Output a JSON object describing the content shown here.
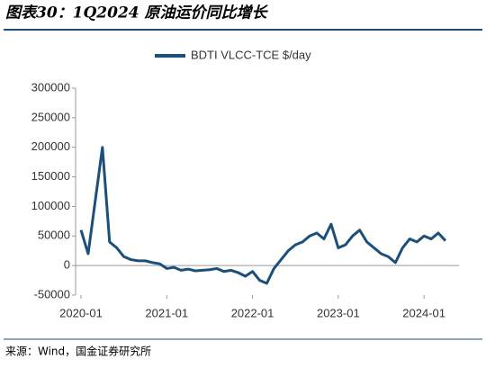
{
  "chart_data": {
    "type": "line",
    "title": "图表30：1Q2024 原油运价同比增长",
    "source": "来源：Wind，国金证券研究所",
    "x": [
      "2020-01",
      "2020-02",
      "2020-03",
      "2020-04",
      "2020-05",
      "2020-06",
      "2020-07",
      "2020-08",
      "2020-09",
      "2020-10",
      "2020-11",
      "2020-12",
      "2021-01",
      "2021-02",
      "2021-03",
      "2021-04",
      "2021-05",
      "2021-06",
      "2021-07",
      "2021-08",
      "2021-09",
      "2021-10",
      "2021-11",
      "2021-12",
      "2022-01",
      "2022-02",
      "2022-03",
      "2022-04",
      "2022-05",
      "2022-06",
      "2022-07",
      "2022-08",
      "2022-09",
      "2022-10",
      "2022-11",
      "2022-12",
      "2023-01",
      "2023-02",
      "2023-03",
      "2023-04",
      "2023-05",
      "2023-06",
      "2023-07",
      "2023-08",
      "2023-09",
      "2023-10",
      "2023-11",
      "2023-12",
      "2024-01",
      "2024-02",
      "2024-03",
      "2024-04"
    ],
    "series": [
      {
        "name": "BDTI VLCC-TCE $/day",
        "color": "#1c4f7a",
        "values": [
          60000,
          20000,
          110000,
          200000,
          40000,
          30000,
          15000,
          10000,
          8000,
          8000,
          5000,
          3000,
          -5000,
          -3000,
          -8000,
          -6000,
          -9000,
          -8000,
          -7000,
          -5000,
          -10000,
          -8000,
          -12000,
          -18000,
          -10000,
          -25000,
          -30000,
          -5000,
          10000,
          25000,
          35000,
          40000,
          50000,
          55000,
          45000,
          70000,
          30000,
          35000,
          50000,
          60000,
          40000,
          30000,
          20000,
          15000,
          5000,
          30000,
          45000,
          40000,
          50000,
          45000,
          55000,
          42000
        ]
      }
    ],
    "ylim": [
      -50000,
      300000
    ],
    "yticks": [
      -50000,
      0,
      50000,
      100000,
      150000,
      200000,
      250000,
      300000
    ],
    "xticks": [
      "2020-01",
      "2021-01",
      "2022-01",
      "2023-01",
      "2024-01"
    ],
    "legend": "top"
  }
}
